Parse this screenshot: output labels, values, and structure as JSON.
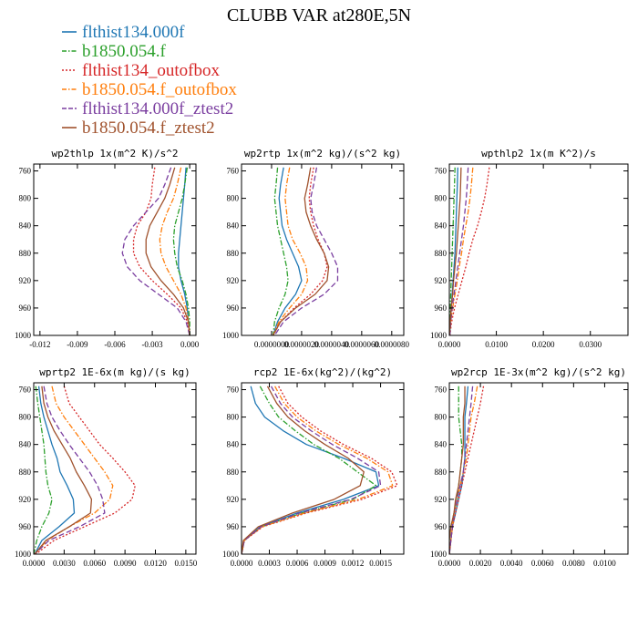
{
  "figure_title": "CLUBB VAR at280E,5N",
  "legend": [
    {
      "name": "flthist134.000f",
      "color": "#1f77b4",
      "dash": "solid"
    },
    {
      "name": "b1850.054.f",
      "color": "#2ca02c",
      "dash": "dashdot"
    },
    {
      "name": "flthist134_outofbox",
      "color": "#d62728",
      "dash": "dotted"
    },
    {
      "name": "b1850.054.f_outofbox",
      "color": "#ff7f0e",
      "dash": "dashdot"
    },
    {
      "name": "flthist134.000f_ztest2",
      "color": "#7b3fa0",
      "dash": "dashed"
    },
    {
      "name": "b1850.054.f_ztest2",
      "color": "#a0522d",
      "dash": "solid"
    }
  ],
  "chart_data": [
    {
      "type": "line",
      "title": "wp2thlp  1x(m^2 K)/s^2",
      "ylim": [
        1000,
        750
      ],
      "yticks": [
        760,
        800,
        840,
        880,
        920,
        960,
        1000
      ],
      "xlim": [
        -0.0125,
        0.0005
      ],
      "xticks": [
        -0.012,
        -0.009,
        -0.006,
        -0.003,
        0.0
      ],
      "xticklabels": [
        "-0.012",
        "-0.009",
        "-0.006",
        "-0.003",
        "0.000"
      ],
      "levels": [
        755,
        780,
        800,
        820,
        840,
        860,
        880,
        900,
        920,
        940,
        960,
        980,
        1000
      ],
      "series": [
        {
          "name": "flthist134.000f",
          "values": [
            -0.0003,
            -0.0004,
            -0.0005,
            -0.0006,
            -0.0007,
            -0.0008,
            -0.0009,
            -0.0009,
            -0.0007,
            -0.0004,
            -0.0002,
            -0.0001,
            0.0
          ]
        },
        {
          "name": "b1850.054.f",
          "values": [
            -0.0002,
            -0.0004,
            -0.0006,
            -0.0009,
            -0.0012,
            -0.0013,
            -0.0012,
            -0.001,
            -0.0006,
            -0.0003,
            -0.0001,
            0.0,
            0.0
          ]
        },
        {
          "name": "flthist134_outofbox",
          "values": [
            -0.0028,
            -0.003,
            -0.0031,
            -0.0035,
            -0.0042,
            -0.0045,
            -0.0045,
            -0.004,
            -0.003,
            -0.0018,
            -0.0007,
            -0.0002,
            0.0
          ]
        },
        {
          "name": "b1850.054.f_outofbox",
          "values": [
            -0.0007,
            -0.001,
            -0.0013,
            -0.0018,
            -0.0022,
            -0.0024,
            -0.0023,
            -0.0019,
            -0.0013,
            -0.0007,
            -0.0003,
            -0.0001,
            0.0
          ]
        },
        {
          "name": "flthist134.000f_ztest2",
          "values": [
            -0.0015,
            -0.002,
            -0.0025,
            -0.0035,
            -0.0045,
            -0.0052,
            -0.0054,
            -0.005,
            -0.004,
            -0.0025,
            -0.001,
            -0.0003,
            0.0
          ]
        },
        {
          "name": "b1850.054.f_ztest2",
          "values": [
            -0.0012,
            -0.0016,
            -0.002,
            -0.0026,
            -0.0032,
            -0.0035,
            -0.0035,
            -0.0031,
            -0.0023,
            -0.0013,
            -0.0005,
            -0.0001,
            0.0
          ]
        }
      ]
    },
    {
      "type": "line",
      "title": "wp2rtp  1x(m^2 kg)/(s^2 kg)",
      "ylim": [
        1000,
        750
      ],
      "yticks": [
        760,
        800,
        840,
        880,
        920,
        960,
        1000
      ],
      "xlim": [
        -2e-06,
        8.8e-06
      ],
      "xticks": [
        0.0,
        2e-06,
        4e-06,
        6e-06,
        8e-06
      ],
      "xticklabels": [
        "0.0000000",
        "0.0000020",
        "0.0000040",
        "0.0000060",
        "0.0000080"
      ],
      "levels": [
        755,
        780,
        800,
        820,
        840,
        860,
        880,
        900,
        920,
        940,
        960,
        980,
        1000
      ],
      "series": [
        {
          "name": "flthist134.000f",
          "values": [
            8e-07,
            6e-07,
            5e-07,
            6e-07,
            7e-07,
            1e-06,
            1.4e-06,
            1.8e-06,
            2e-06,
            1.6e-06,
            9e-07,
            4e-07,
            1e-07
          ]
        },
        {
          "name": "b1850.054.f",
          "values": [
            4e-07,
            3e-07,
            2e-07,
            3e-07,
            4e-07,
            6e-07,
            8e-07,
            1e-06,
            1.1e-06,
            9e-07,
            5e-07,
            2e-07,
            1e-07
          ]
        },
        {
          "name": "flthist134_outofbox",
          "values": [
            2.8e-06,
            2.6e-06,
            2.5e-06,
            2.6e-06,
            2.8e-06,
            3.1e-06,
            3.5e-06,
            3.7e-06,
            3.4e-06,
            2.6e-06,
            1.5e-06,
            6e-07,
            1e-07
          ]
        },
        {
          "name": "b1850.054.f_outofbox",
          "values": [
            1.2e-06,
            1e-06,
            9e-07,
            1e-06,
            1.1e-06,
            1.4e-06,
            1.9e-06,
            2.3e-06,
            2.4e-06,
            2e-06,
            1.2e-06,
            5e-07,
            1e-07
          ]
        },
        {
          "name": "flthist134.000f_ztest2",
          "values": [
            3e-06,
            2.8e-06,
            2.6e-06,
            2.7e-06,
            3e-06,
            3.5e-06,
            4e-06,
            4.4e-06,
            4.4e-06,
            3.5e-06,
            2e-06,
            8e-07,
            2e-07
          ]
        },
        {
          "name": "b1850.054.f_ztest2",
          "values": [
            2.6e-06,
            2.4e-06,
            2.2e-06,
            2.3e-06,
            2.6e-06,
            3e-06,
            3.5e-06,
            3.8e-06,
            3.7e-06,
            2.9e-06,
            1.6e-06,
            6e-07,
            1e-07
          ]
        }
      ]
    },
    {
      "type": "line",
      "title": "wpthlp2  1x(m K^2)/s",
      "ylim": [
        1000,
        750
      ],
      "yticks": [
        760,
        800,
        840,
        880,
        920,
        960,
        1000
      ],
      "xlim": [
        0,
        0.038
      ],
      "xticks": [
        0.0,
        0.01,
        0.02,
        0.03
      ],
      "xticklabels": [
        "0.0000",
        "0.0100",
        "0.0200",
        "0.0300"
      ],
      "levels": [
        755,
        780,
        800,
        820,
        840,
        860,
        880,
        900,
        920,
        940,
        960,
        980,
        1000
      ],
      "series": [
        {
          "name": "flthist134.000f",
          "values": [
            0.0018,
            0.0017,
            0.0016,
            0.0015,
            0.0014,
            0.0013,
            0.0012,
            0.001,
            0.0008,
            0.0006,
            0.0004,
            0.0002,
            0.0001
          ]
        },
        {
          "name": "b1850.054.f",
          "values": [
            0.0012,
            0.0011,
            0.001,
            0.0009,
            0.0008,
            0.0007,
            0.0006,
            0.0005,
            0.0004,
            0.0003,
            0.0002,
            0.0001,
            0.0
          ]
        },
        {
          "name": "flthist134_outofbox",
          "values": [
            0.0085,
            0.008,
            0.0075,
            0.0068,
            0.006,
            0.005,
            0.0042,
            0.0035,
            0.0027,
            0.0019,
            0.0011,
            0.0005,
            0.0001
          ]
        },
        {
          "name": "b1850.054.f_outofbox",
          "values": [
            0.005,
            0.0047,
            0.0044,
            0.004,
            0.0035,
            0.003,
            0.0026,
            0.0021,
            0.0017,
            0.0012,
            0.0007,
            0.0003,
            0.0001
          ]
        },
        {
          "name": "flthist134.000f_ztest2",
          "values": [
            0.004,
            0.0038,
            0.0036,
            0.0033,
            0.003,
            0.0026,
            0.0022,
            0.0018,
            0.0014,
            0.001,
            0.0006,
            0.0003,
            0.0001
          ]
        },
        {
          "name": "b1850.054.f_ztest2",
          "values": [
            0.0025,
            0.0024,
            0.0023,
            0.0021,
            0.0019,
            0.0017,
            0.0015,
            0.0012,
            0.0009,
            0.0007,
            0.0004,
            0.0002,
            0.0
          ]
        }
      ]
    },
    {
      "type": "line",
      "title": "wprtp2  1E-6x(m kg)/(s kg)",
      "ylim": [
        1000,
        750
      ],
      "yticks": [
        760,
        800,
        840,
        880,
        920,
        960,
        1000
      ],
      "xlim": [
        0,
        0.016
      ],
      "xticks": [
        0.0,
        0.003,
        0.006,
        0.009,
        0.012,
        0.015
      ],
      "xticklabels": [
        "0.0000",
        "0.0030",
        "0.0060",
        "0.0090",
        "0.0120",
        "0.0150"
      ],
      "levels": [
        755,
        780,
        800,
        820,
        840,
        860,
        880,
        900,
        920,
        940,
        960,
        980,
        1000
      ],
      "series": [
        {
          "name": "flthist134.000f",
          "values": [
            0.0005,
            0.0007,
            0.001,
            0.0014,
            0.0018,
            0.0023,
            0.0026,
            0.0033,
            0.0039,
            0.004,
            0.0025,
            0.0008,
            0.0001
          ]
        },
        {
          "name": "b1850.054.f",
          "values": [
            0.0002,
            0.0004,
            0.0006,
            0.0008,
            0.001,
            0.0011,
            0.0012,
            0.0014,
            0.0018,
            0.0015,
            0.0008,
            0.0003,
            0.0
          ]
        },
        {
          "name": "flthist134_outofbox",
          "values": [
            0.003,
            0.0035,
            0.0045,
            0.0055,
            0.0065,
            0.0078,
            0.009,
            0.01,
            0.0097,
            0.008,
            0.005,
            0.002,
            0.0002
          ]
        },
        {
          "name": "b1850.054.f_outofbox",
          "values": [
            0.0018,
            0.0022,
            0.003,
            0.004,
            0.005,
            0.006,
            0.007,
            0.0078,
            0.0075,
            0.006,
            0.0035,
            0.0013,
            0.0001
          ]
        },
        {
          "name": "flthist134.000f_ztest2",
          "values": [
            0.001,
            0.0013,
            0.0018,
            0.0026,
            0.0035,
            0.0045,
            0.0055,
            0.0063,
            0.0068,
            0.007,
            0.0045,
            0.0015,
            0.0001
          ]
        },
        {
          "name": "b1850.054.f_ztest2",
          "values": [
            0.0008,
            0.001,
            0.0014,
            0.002,
            0.0028,
            0.0036,
            0.0042,
            0.005,
            0.0057,
            0.0056,
            0.0035,
            0.0012,
            0.0001
          ]
        }
      ]
    },
    {
      "type": "line",
      "title": "rcp2  1E-6x(kg^2)/(kg^2)",
      "ylim": [
        1000,
        750
      ],
      "yticks": [
        760,
        800,
        840,
        880,
        920,
        960,
        1000
      ],
      "xlim": [
        0,
        0.00175
      ],
      "xticks": [
        0.0,
        0.0003,
        0.0006,
        0.0009,
        0.0012,
        0.0015
      ],
      "xticklabels": [
        "0.0000",
        "0.0003",
        "0.0006",
        "0.0009",
        "0.0012",
        "0.0015"
      ],
      "levels": [
        755,
        780,
        800,
        820,
        840,
        860,
        880,
        900,
        920,
        940,
        960,
        980,
        1000
      ],
      "series": [
        {
          "name": "flthist134.000f",
          "values": [
            0.0001,
            0.00015,
            0.00025,
            0.00045,
            0.0007,
            0.0011,
            0.00145,
            0.00148,
            0.0011,
            0.0006,
            0.0002,
            3e-05,
            0.0
          ]
        },
        {
          "name": "b1850.054.f",
          "values": [
            0.0002,
            0.0003,
            0.0004,
            0.00058,
            0.00078,
            0.00105,
            0.00125,
            0.00145,
            0.0012,
            0.00065,
            0.00022,
            3e-05,
            0.0
          ]
        },
        {
          "name": "flthist134_outofbox",
          "values": [
            0.0004,
            0.0005,
            0.00065,
            0.00085,
            0.0011,
            0.0014,
            0.00162,
            0.00168,
            0.0013,
            0.0007,
            0.00023,
            3e-05,
            0.0
          ]
        },
        {
          "name": "b1850.054.f_outofbox",
          "values": [
            0.00036,
            0.00046,
            0.0006,
            0.0008,
            0.00105,
            0.00135,
            0.00158,
            0.00163,
            0.00126,
            0.00068,
            0.00022,
            3e-05,
            0.0
          ]
        },
        {
          "name": "flthist134.000f_ztest2",
          "values": [
            0.00032,
            0.00042,
            0.00055,
            0.00075,
            0.00098,
            0.00125,
            0.00148,
            0.0015,
            0.00118,
            0.00063,
            0.00021,
            3e-05,
            0.0
          ]
        },
        {
          "name": "b1850.054.f_ztest2",
          "values": [
            0.00028,
            0.00038,
            0.0005,
            0.00068,
            0.0009,
            0.00115,
            0.00132,
            0.00128,
            0.001,
            0.00055,
            0.00018,
            2e-05,
            0.0
          ]
        }
      ]
    },
    {
      "type": "line",
      "title": "wp2rcp  1E-3x(m^2 kg)/(s^2 kg)",
      "ylim": [
        1000,
        750
      ],
      "yticks": [
        760,
        800,
        840,
        880,
        920,
        960,
        1000
      ],
      "xlim": [
        0,
        0.0115
      ],
      "xticks": [
        0.0,
        0.002,
        0.004,
        0.006,
        0.008,
        0.01
      ],
      "xticklabels": [
        "0.0000",
        "0.0020",
        "0.0040",
        "0.0060",
        "0.0080",
        "0.0100"
      ],
      "levels": [
        755,
        780,
        800,
        820,
        840,
        860,
        880,
        900,
        920,
        940,
        960,
        980,
        1000
      ],
      "series": [
        {
          "name": "flthist134.000f",
          "values": [
            0.0012,
            0.0011,
            0.001,
            0.001,
            0.001,
            0.001,
            0.0009,
            0.0008,
            0.0006,
            0.0004,
            0.0002,
            0.0001,
            0.0
          ]
        },
        {
          "name": "b1850.054.f",
          "values": [
            0.0006,
            0.0006,
            0.0006,
            0.0007,
            0.0008,
            0.0008,
            0.0007,
            0.0006,
            0.0005,
            0.0003,
            0.0001,
            0.0,
            0.0
          ]
        },
        {
          "name": "flthist134_outofbox",
          "values": [
            0.0022,
            0.002,
            0.0018,
            0.0016,
            0.0014,
            0.0012,
            0.001,
            0.0008,
            0.0006,
            0.0004,
            0.0002,
            0.0001,
            0.0
          ]
        },
        {
          "name": "b1850.054.f_outofbox",
          "values": [
            0.0018,
            0.0016,
            0.0014,
            0.0013,
            0.0012,
            0.0011,
            0.0009,
            0.0007,
            0.0005,
            0.0003,
            0.0002,
            0.0001,
            0.0
          ]
        },
        {
          "name": "flthist134.000f_ztest2",
          "values": [
            0.0015,
            0.0014,
            0.0013,
            0.0012,
            0.0011,
            0.001,
            0.0009,
            0.0007,
            0.0005,
            0.0003,
            0.0002,
            0.0001,
            0.0
          ]
        },
        {
          "name": "b1850.054.f_ztest2",
          "values": [
            0.001,
            0.001,
            0.0009,
            0.0009,
            0.0009,
            0.0008,
            0.0007,
            0.0006,
            0.0004,
            0.0003,
            0.0001,
            0.0,
            0.0
          ]
        }
      ]
    }
  ]
}
